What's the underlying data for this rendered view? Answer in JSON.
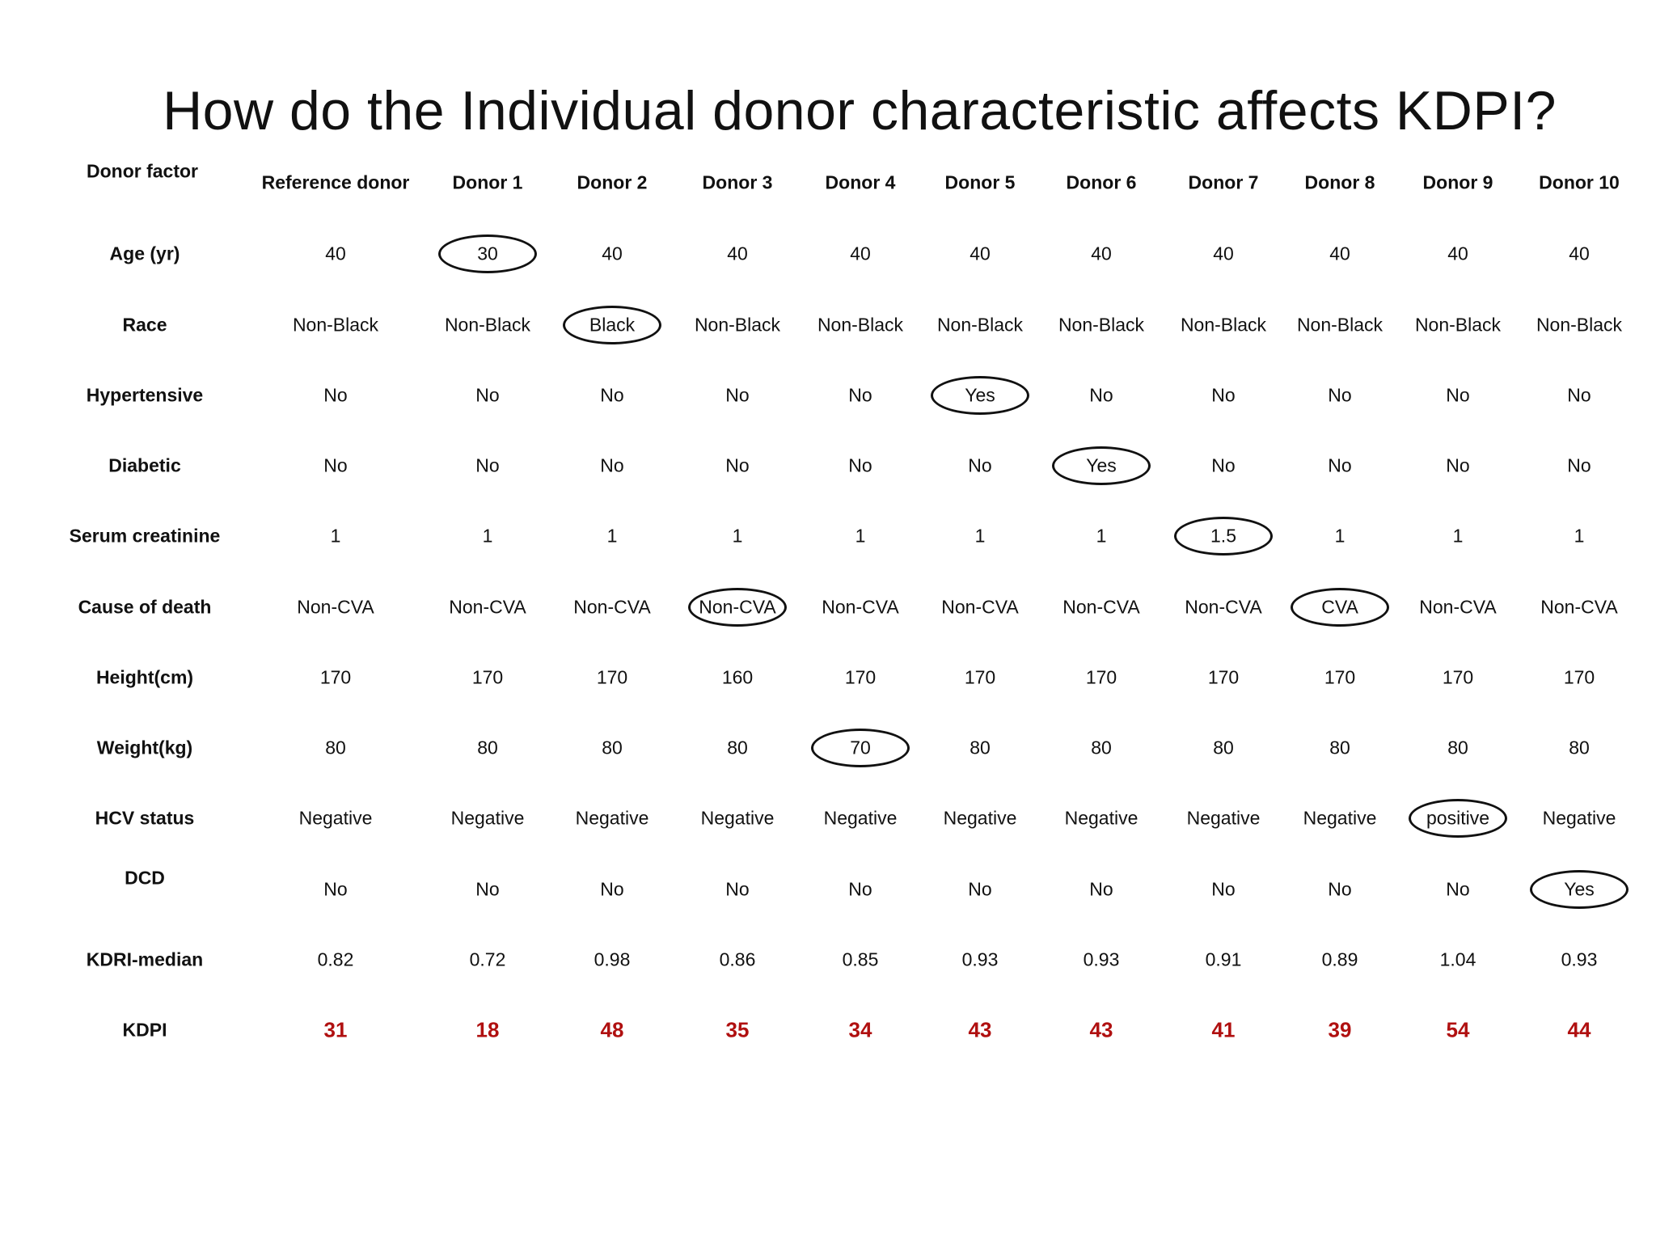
{
  "title": "How do the Individual donor characteristic affects KDPI?",
  "table": {
    "corner_label": "Donor factor",
    "columns": [
      "Reference donor",
      "Donor 1",
      "Donor 2",
      "Donor 3",
      "Donor 4",
      "Donor 5",
      "Donor 6",
      "Donor 7",
      "Donor 8",
      "Donor 9",
      "Donor 10"
    ],
    "rows": [
      {
        "label": "Age (yr)",
        "values": [
          "40",
          "30",
          "40",
          "40",
          "40",
          "40",
          "40",
          "40",
          "40",
          "40",
          "40"
        ],
        "circled": 1
      },
      {
        "label": "Race",
        "values": [
          "Non-Black",
          "Non-Black",
          "Black",
          "Non-Black",
          "Non-Black",
          "Non-Black",
          "Non-Black",
          "Non-Black",
          "Non-Black",
          "Non-Black",
          "Non-Black"
        ],
        "circled": 2
      },
      {
        "label": "Hypertensive",
        "values": [
          "No",
          "No",
          "No",
          "No",
          "No",
          "Yes",
          "No",
          "No",
          "No",
          "No",
          "No"
        ],
        "circled": 5
      },
      {
        "label": "Diabetic",
        "values": [
          "No",
          "No",
          "No",
          "No",
          "No",
          "No",
          "Yes",
          "No",
          "No",
          "No",
          "No"
        ],
        "circled": 6
      },
      {
        "label": "Serum creatinine",
        "values": [
          "1",
          "1",
          "1",
          "1",
          "1",
          "1",
          "1",
          "1.5",
          "1",
          "1",
          "1"
        ],
        "circled": 7
      },
      {
        "label": "Cause of death",
        "values": [
          "Non-CVA",
          "Non-CVA",
          "Non-CVA",
          "Non-CVA",
          "Non-CVA",
          "Non-CVA",
          "Non-CVA",
          "Non-CVA",
          "CVA",
          "Non-CVA",
          "Non-CVA"
        ],
        "circled": 3
      },
      {
        "label": "Height(cm)",
        "values": [
          "170",
          "170",
          "170",
          "160",
          "170",
          "170",
          "170",
          "170",
          "170",
          "170",
          "170"
        ],
        "circled": null
      },
      {
        "label": "Weight(kg)",
        "values": [
          "80",
          "80",
          "80",
          "80",
          "70",
          "80",
          "80",
          "80",
          "80",
          "80",
          "80"
        ],
        "circled": 4
      },
      {
        "label": "HCV status",
        "values": [
          "Negative",
          "Negative",
          "Negative",
          "Negative",
          "Negative",
          "Negative",
          "Negative",
          "Negative",
          "Negative",
          "positive",
          "Negative"
        ],
        "circled": 9
      },
      {
        "label": "DCD",
        "values": [
          "No",
          "No",
          "No",
          "No",
          "No",
          "No",
          "No",
          "No",
          "No",
          "No",
          "Yes"
        ],
        "circled": 10
      },
      {
        "label": "KDRI-median",
        "values": [
          "0.82",
          "0.72",
          "0.98",
          "0.86",
          "0.85",
          "0.93",
          "0.93",
          "0.91",
          "0.89",
          "1.04",
          "0.93"
        ],
        "circled": null
      },
      {
        "label": "KDPI",
        "values": [
          "31",
          "18",
          "48",
          "35",
          "34",
          "43",
          "43",
          "41",
          "39",
          "54",
          "44"
        ],
        "circled": null,
        "highlight": true
      }
    ],
    "extra_circled": [
      {
        "row": 5,
        "col": 8
      }
    ]
  },
  "colors": {
    "kdpi_value": "#b01010",
    "text": "#111111",
    "oval_stroke": "#111111"
  }
}
